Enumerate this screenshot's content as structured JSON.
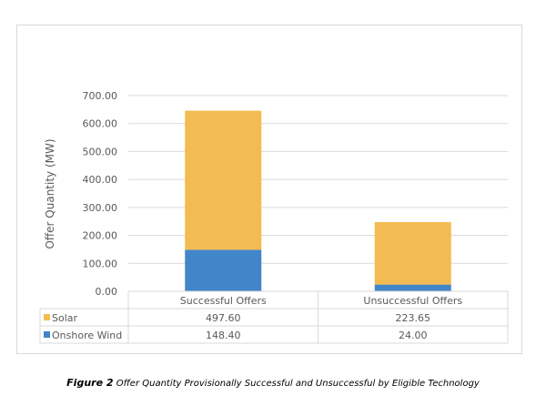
{
  "chart_data": {
    "type": "bar",
    "stacked": true,
    "title": "",
    "xlabel": "",
    "ylabel": "Offer Quantity (MW)",
    "ylim": [
      0,
      700
    ],
    "yticks": [
      "0.00",
      "100.00",
      "200.00",
      "300.00",
      "400.00",
      "500.00",
      "600.00",
      "700.00"
    ],
    "ytick_values": [
      0,
      100,
      200,
      300,
      400,
      500,
      600,
      700
    ],
    "grid": true,
    "categories": [
      "Successful Offers",
      "Unsuccessful Offers"
    ],
    "series": [
      {
        "name": "Onshore Wind",
        "color": "#4285C9",
        "values": [
          148.4,
          24.0
        ],
        "labels": [
          "148.40",
          "24.00"
        ]
      },
      {
        "name": "Solar",
        "color": "#F2BC52",
        "values": [
          497.6,
          223.65
        ],
        "labels": [
          "497.60",
          "223.65"
        ]
      }
    ],
    "data_table": {
      "rows": [
        {
          "name": "Solar",
          "color": "#F2BC52",
          "values": [
            "497.60",
            "223.65"
          ]
        },
        {
          "name": "Onshore Wind",
          "color": "#4285C9",
          "values": [
            "148.40",
            "24.00"
          ]
        }
      ]
    }
  },
  "caption": {
    "figure_label": "Figure 2",
    "text": "Offer Quantity Provisionally Successful and Unsuccessful by Eligible Technology"
  }
}
